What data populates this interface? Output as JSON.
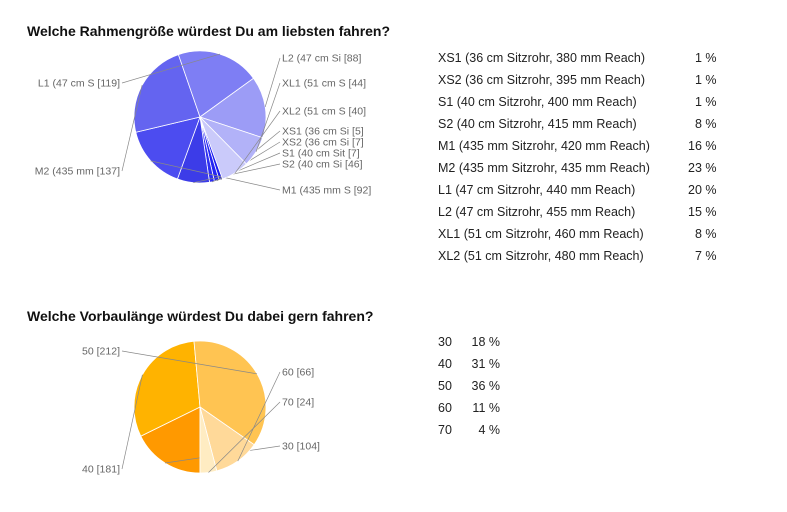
{
  "chart_data": [
    {
      "type": "pie",
      "title": "Welche Rahmengröße würdest Du am liebsten fahren?",
      "categories": [
        "XS1 (36 cm Sitzrohr, 380 mm Reach)",
        "XS2 (36 cm Sitzrohr, 395 mm Reach)",
        "S1 (40 cm Sitzrohr, 400 mm Reach)",
        "S2 (40 cm Sitzrohr, 415 mm Reach)",
        "M1 (435 mm Sitzrohr, 420 mm Reach)",
        "M2 (435 mm Sitzrohr, 435 mm Reach)",
        "L1 (47 cm Sitzrohr, 440 mm Reach)",
        "L2 (47 cm Sitzrohr, 455 mm Reach)",
        "XL1 (51 cm Sitzrohr, 460 mm Reach)",
        "XL2 (51 cm Sitzrohr, 480 mm Reach)"
      ],
      "values": [
        5,
        7,
        7,
        46,
        92,
        137,
        119,
        88,
        44,
        40
      ],
      "percentages": [
        "1 %",
        "1 %",
        "1 %",
        "8 %",
        "16 %",
        "23 %",
        "20 %",
        "15 %",
        "8 %",
        "7 %"
      ],
      "slice_labels": [
        "XS1 (36 cm Si [5]",
        "XS2 (36 cm Si [7]",
        "S1 (40 cm Sit [7]",
        "S2 (40 cm Si [46]",
        "M1 (435 mm S [92]",
        "M2 (435 mm  [137]",
        "L1 (47 cm S [119]",
        "L2 (47 cm Si [88]",
        "XL1 (51 cm S [44]",
        "XL2 (51 cm S [40]"
      ],
      "colors": [
        "#1a1af0",
        "#2424f2",
        "#2e2ef2",
        "#3c3ce8",
        "#4c4cf0",
        "#6464f0",
        "#7e7ef4",
        "#9c9cf6",
        "#b2b2f8",
        "#cacafa"
      ]
    },
    {
      "type": "pie",
      "title": "Welche Vorbaulänge würdest Du dabei gern fahren?",
      "categories": [
        "30",
        "40",
        "50",
        "60",
        "70"
      ],
      "values": [
        104,
        181,
        212,
        66,
        24
      ],
      "percentages": [
        "18 %",
        "31 %",
        "36 %",
        "11 %",
        "4 %"
      ],
      "slice_labels": [
        "30 [104]",
        "40 [181]",
        "50 [212]",
        "60 [66]",
        "70 [24]"
      ],
      "colors": [
        "#ff9900",
        "#ffb300",
        "#ffc452",
        "#ffd999",
        "#ffecc2"
      ]
    }
  ]
}
